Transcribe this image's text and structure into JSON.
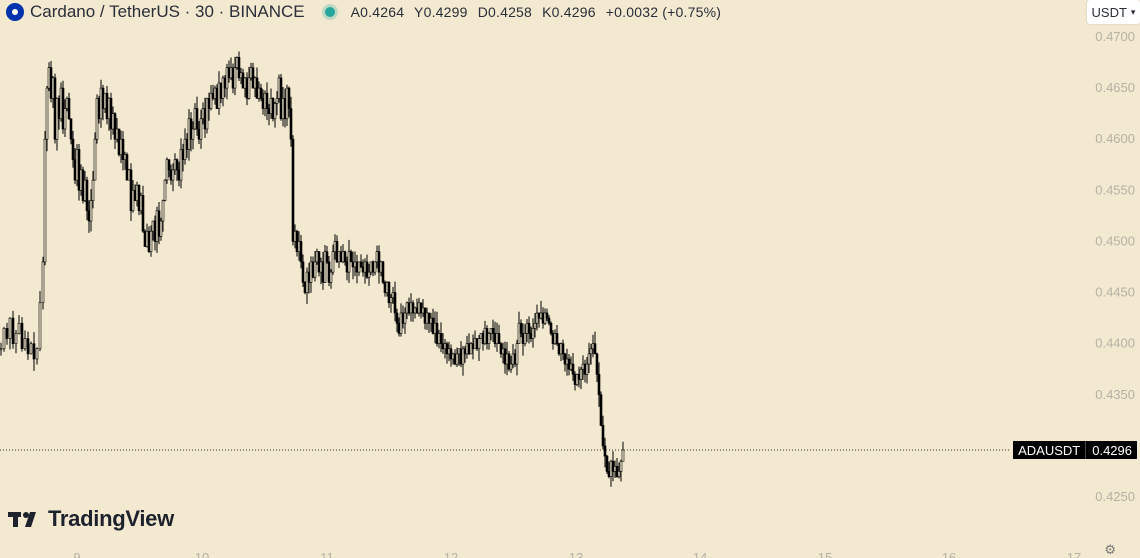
{
  "header": {
    "symbol_title": "Cardano / TetherUS · 30 · BINANCE",
    "ohlc": {
      "open": "A0.4264",
      "high": "Y0.4299",
      "low": "D0.4258",
      "close": "K0.4296",
      "change": "+0.0032 (+0.75%)"
    },
    "status_icon": "green-dot-icon",
    "logo_icon": "cardano-logo-icon"
  },
  "currency_button": {
    "label": "USDT",
    "icon": "chevron-down-icon"
  },
  "last_price": {
    "symbol": "ADAUSDT",
    "value": "0.4296"
  },
  "brand": {
    "name": "TradingView",
    "icon": "tradingview-logo-icon"
  },
  "colors": {
    "background": "#f2e9d0",
    "candle": "#000000",
    "axis_text": "#b6b1a3",
    "status_green": "#26a69a",
    "logo_blue": "#0033ad"
  },
  "chart_data": {
    "type": "candlestick",
    "ylim": [
      0.4225,
      0.471
    ],
    "y_ticks": [
      "0.4700",
      "0.4650",
      "0.4600",
      "0.4550",
      "0.4500",
      "0.4450",
      "0.4400",
      "0.4350",
      "0.4250"
    ],
    "x_ticks": [
      "9",
      "10",
      "11",
      "12",
      "13",
      "14",
      "15",
      "16",
      "17"
    ],
    "last_price_line": 0.4296,
    "close_path": [
      [
        0,
        0.4395
      ],
      [
        3,
        0.4415
      ],
      [
        6,
        0.4405
      ],
      [
        9,
        0.4425
      ],
      [
        12,
        0.44
      ],
      [
        15,
        0.441
      ],
      [
        18,
        0.442
      ],
      [
        21,
        0.4395
      ],
      [
        24,
        0.4405
      ],
      [
        27,
        0.439
      ],
      [
        30,
        0.44
      ],
      [
        33,
        0.4385
      ],
      [
        36,
        0.4395
      ],
      [
        39,
        0.444
      ],
      [
        42,
        0.448
      ],
      [
        44,
        0.46
      ],
      [
        46,
        0.465
      ],
      [
        48,
        0.467
      ],
      [
        50,
        0.464
      ],
      [
        52,
        0.466
      ],
      [
        54,
        0.46
      ],
      [
        56,
        0.464
      ],
      [
        58,
        0.462
      ],
      [
        60,
        0.465
      ],
      [
        62,
        0.461
      ],
      [
        64,
        0.463
      ],
      [
        66,
        0.464
      ],
      [
        68,
        0.462
      ],
      [
        70,
        0.46
      ],
      [
        72,
        0.458
      ],
      [
        74,
        0.456
      ],
      [
        76,
        0.459
      ],
      [
        78,
        0.455
      ],
      [
        80,
        0.457
      ],
      [
        82,
        0.454
      ],
      [
        84,
        0.456
      ],
      [
        86,
        0.453
      ],
      [
        88,
        0.452
      ],
      [
        90,
        0.454
      ],
      [
        92,
        0.456
      ],
      [
        94,
        0.46
      ],
      [
        96,
        0.464
      ],
      [
        98,
        0.462
      ],
      [
        100,
        0.465
      ],
      [
        102,
        0.463
      ],
      [
        104,
        0.4645
      ],
      [
        106,
        0.462
      ],
      [
        108,
        0.464
      ],
      [
        110,
        0.461
      ],
      [
        112,
        0.4625
      ],
      [
        114,
        0.46
      ],
      [
        116,
        0.461
      ],
      [
        118,
        0.4585
      ],
      [
        120,
        0.46
      ],
      [
        122,
        0.458
      ],
      [
        124,
        0.4585
      ],
      [
        126,
        0.456
      ],
      [
        128,
        0.457
      ],
      [
        130,
        0.453
      ],
      [
        132,
        0.455
      ],
      [
        134,
        0.454
      ],
      [
        136,
        0.4555
      ],
      [
        138,
        0.453
      ],
      [
        140,
        0.4545
      ],
      [
        142,
        0.451
      ],
      [
        144,
        0.4495
      ],
      [
        146,
        0.451
      ],
      [
        148,
        0.449
      ],
      [
        150,
        0.451
      ],
      [
        152,
        0.452
      ],
      [
        154,
        0.45
      ],
      [
        156,
        0.453
      ],
      [
        158,
        0.4505
      ],
      [
        160,
        0.452
      ],
      [
        162,
        0.454
      ],
      [
        164,
        0.456
      ],
      [
        166,
        0.458
      ],
      [
        168,
        0.457
      ],
      [
        170,
        0.456
      ],
      [
        172,
        0.457
      ],
      [
        174,
        0.458
      ],
      [
        176,
        0.457
      ],
      [
        178,
        0.456
      ],
      [
        180,
        0.459
      ],
      [
        182,
        0.458
      ],
      [
        184,
        0.46
      ],
      [
        186,
        0.459
      ],
      [
        188,
        0.462
      ],
      [
        190,
        0.46
      ],
      [
        192,
        0.461
      ],
      [
        194,
        0.463
      ],
      [
        196,
        0.461
      ],
      [
        198,
        0.46
      ],
      [
        200,
        0.462
      ],
      [
        202,
        0.463
      ],
      [
        204,
        0.461
      ],
      [
        206,
        0.464
      ],
      [
        208,
        0.463
      ],
      [
        210,
        0.4645
      ],
      [
        212,
        0.464
      ],
      [
        214,
        0.465
      ],
      [
        216,
        0.463
      ],
      [
        218,
        0.4655
      ],
      [
        220,
        0.464
      ],
      [
        222,
        0.466
      ],
      [
        224,
        0.465
      ],
      [
        226,
        0.467
      ],
      [
        228,
        0.466
      ],
      [
        230,
        0.467
      ],
      [
        232,
        0.465
      ],
      [
        234,
        0.467
      ],
      [
        236,
        0.468
      ],
      [
        238,
        0.466
      ],
      [
        240,
        0.4665
      ],
      [
        242,
        0.465
      ],
      [
        244,
        0.466
      ],
      [
        246,
        0.464
      ],
      [
        248,
        0.466
      ],
      [
        250,
        0.467
      ],
      [
        252,
        0.465
      ],
      [
        254,
        0.466
      ],
      [
        256,
        0.464
      ],
      [
        258,
        0.465
      ],
      [
        260,
        0.464
      ],
      [
        262,
        0.463
      ],
      [
        264,
        0.4645
      ],
      [
        266,
        0.463
      ],
      [
        268,
        0.4625
      ],
      [
        270,
        0.464
      ],
      [
        272,
        0.462
      ],
      [
        274,
        0.4635
      ],
      [
        276,
        0.464
      ],
      [
        278,
        0.466
      ],
      [
        280,
        0.462
      ],
      [
        282,
        0.464
      ],
      [
        284,
        0.462
      ],
      [
        286,
        0.465
      ],
      [
        288,
        0.463
      ],
      [
        290,
        0.46
      ],
      [
        292,
        0.45
      ],
      [
        294,
        0.451
      ],
      [
        296,
        0.449
      ],
      [
        298,
        0.45
      ],
      [
        300,
        0.448
      ],
      [
        302,
        0.446
      ],
      [
        304,
        0.445
      ],
      [
        306,
        0.447
      ],
      [
        308,
        0.446
      ],
      [
        310,
        0.448
      ],
      [
        312,
        0.4465
      ],
      [
        314,
        0.448
      ],
      [
        316,
        0.449
      ],
      [
        318,
        0.447
      ],
      [
        320,
        0.448
      ],
      [
        322,
        0.446
      ],
      [
        324,
        0.449
      ],
      [
        326,
        0.448
      ],
      [
        328,
        0.446
      ],
      [
        330,
        0.447
      ],
      [
        332,
        0.449
      ],
      [
        334,
        0.45
      ],
      [
        336,
        0.448
      ],
      [
        338,
        0.449
      ],
      [
        340,
        0.448
      ],
      [
        342,
        0.449
      ],
      [
        344,
        0.448
      ],
      [
        346,
        0.447
      ],
      [
        348,
        0.449
      ],
      [
        350,
        0.448
      ],
      [
        352,
        0.4475
      ],
      [
        354,
        0.448
      ],
      [
        356,
        0.447
      ],
      [
        358,
        0.448
      ],
      [
        360,
        0.4475
      ],
      [
        362,
        0.447
      ],
      [
        364,
        0.448
      ],
      [
        366,
        0.4465
      ],
      [
        368,
        0.447
      ],
      [
        370,
        0.448
      ],
      [
        372,
        0.447
      ],
      [
        374,
        0.448
      ],
      [
        376,
        0.449
      ],
      [
        378,
        0.447
      ],
      [
        380,
        0.448
      ],
      [
        382,
        0.446
      ],
      [
        384,
        0.445
      ],
      [
        386,
        0.446
      ],
      [
        388,
        0.444
      ],
      [
        390,
        0.4445
      ],
      [
        392,
        0.445
      ],
      [
        394,
        0.443
      ],
      [
        396,
        0.442
      ],
      [
        398,
        0.441
      ],
      [
        400,
        0.443
      ],
      [
        402,
        0.442
      ],
      [
        404,
        0.443
      ],
      [
        406,
        0.444
      ],
      [
        408,
        0.443
      ],
      [
        410,
        0.444
      ],
      [
        412,
        0.443
      ],
      [
        414,
        0.4435
      ],
      [
        416,
        0.443
      ],
      [
        418,
        0.444
      ],
      [
        420,
        0.443
      ],
      [
        422,
        0.4435
      ],
      [
        424,
        0.442
      ],
      [
        426,
        0.443
      ],
      [
        428,
        0.442
      ],
      [
        430,
        0.4425
      ],
      [
        432,
        0.441
      ],
      [
        434,
        0.442
      ],
      [
        436,
        0.44
      ],
      [
        438,
        0.441
      ],
      [
        440,
        0.44
      ],
      [
        442,
        0.4395
      ],
      [
        444,
        0.44
      ],
      [
        446,
        0.439
      ],
      [
        448,
        0.4395
      ],
      [
        450,
        0.4385
      ],
      [
        452,
        0.439
      ],
      [
        454,
        0.438
      ],
      [
        456,
        0.439
      ],
      [
        458,
        0.4395
      ],
      [
        460,
        0.438
      ],
      [
        462,
        0.4395
      ],
      [
        464,
        0.439
      ],
      [
        466,
        0.44
      ],
      [
        468,
        0.439
      ],
      [
        470,
        0.44
      ],
      [
        472,
        0.4395
      ],
      [
        474,
        0.4405
      ],
      [
        476,
        0.4395
      ],
      [
        478,
        0.4405
      ],
      [
        480,
        0.441
      ],
      [
        482,
        0.44
      ],
      [
        484,
        0.4415
      ],
      [
        486,
        0.44
      ],
      [
        488,
        0.441
      ],
      [
        490,
        0.4415
      ],
      [
        492,
        0.441
      ],
      [
        494,
        0.44
      ],
      [
        496,
        0.441
      ],
      [
        498,
        0.44
      ],
      [
        500,
        0.439
      ],
      [
        502,
        0.4395
      ],
      [
        504,
        0.438
      ],
      [
        506,
        0.439
      ],
      [
        508,
        0.4375
      ],
      [
        510,
        0.438
      ],
      [
        512,
        0.439
      ],
      [
        514,
        0.438
      ],
      [
        516,
        0.44
      ],
      [
        518,
        0.442
      ],
      [
        520,
        0.441
      ],
      [
        522,
        0.44
      ],
      [
        524,
        0.441
      ],
      [
        526,
        0.442
      ],
      [
        528,
        0.441
      ],
      [
        530,
        0.4405
      ],
      [
        532,
        0.4415
      ],
      [
        534,
        0.442
      ],
      [
        536,
        0.443
      ],
      [
        538,
        0.4425
      ],
      [
        540,
        0.443
      ],
      [
        542,
        0.442
      ],
      [
        544,
        0.443
      ],
      [
        546,
        0.4425
      ],
      [
        548,
        0.442
      ],
      [
        550,
        0.441
      ],
      [
        552,
        0.44
      ],
      [
        554,
        0.441
      ],
      [
        556,
        0.44
      ],
      [
        558,
        0.439
      ],
      [
        560,
        0.44
      ],
      [
        562,
        0.439
      ],
      [
        564,
        0.438
      ],
      [
        566,
        0.4385
      ],
      [
        568,
        0.4375
      ],
      [
        570,
        0.438
      ],
      [
        572,
        0.437
      ],
      [
        574,
        0.436
      ],
      [
        576,
        0.437
      ],
      [
        578,
        0.4365
      ],
      [
        580,
        0.4375
      ],
      [
        582,
        0.438
      ],
      [
        584,
        0.437
      ],
      [
        586,
        0.438
      ],
      [
        588,
        0.439
      ],
      [
        590,
        0.4395
      ],
      [
        592,
        0.44
      ],
      [
        594,
        0.439
      ],
      [
        596,
        0.437
      ],
      [
        598,
        0.435
      ],
      [
        600,
        0.432
      ],
      [
        602,
        0.43
      ],
      [
        604,
        0.429
      ],
      [
        606,
        0.4275
      ],
      [
        608,
        0.427
      ],
      [
        610,
        0.4285
      ],
      [
        612,
        0.4275
      ],
      [
        614,
        0.428
      ],
      [
        616,
        0.427
      ],
      [
        618,
        0.4275
      ],
      [
        620,
        0.4285
      ],
      [
        622,
        0.4296
      ]
    ]
  }
}
